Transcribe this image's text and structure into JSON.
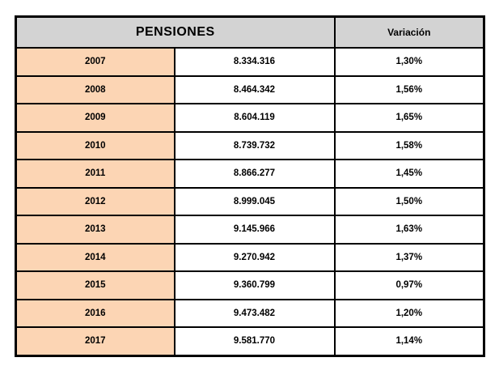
{
  "chart_data": {
    "type": "table",
    "title": "PENSIONES",
    "header": {
      "merged_title": "PENSIONES",
      "variation_label": "Variación"
    },
    "rows": [
      {
        "year": "2007",
        "value": "8.334.316",
        "variation": "1,30%"
      },
      {
        "year": "2008",
        "value": "8.464.342",
        "variation": "1,56%"
      },
      {
        "year": "2009",
        "value": "8.604.119",
        "variation": "1,65%"
      },
      {
        "year": "2010",
        "value": "8.739.732",
        "variation": "1,58%"
      },
      {
        "year": "2011",
        "value": "8.866.277",
        "variation": "1,45%"
      },
      {
        "year": "2012",
        "value": "8.999.045",
        "variation": "1,50%"
      },
      {
        "year": "2013",
        "value": "9.145.966",
        "variation": "1,63%"
      },
      {
        "year": "2014",
        "value": "9.270.942",
        "variation": "1,37%"
      },
      {
        "year": "2015",
        "value": "9.360.799",
        "variation": "0,97%"
      },
      {
        "year": "2016",
        "value": "9.473.482",
        "variation": "1,20%"
      },
      {
        "year": "2017",
        "value": "9.581.770",
        "variation": "1,14%"
      }
    ],
    "layout_hints": {
      "merged_title_spans_columns": 2,
      "grid": true
    },
    "colors": {
      "header_bg": "#d3d3d3",
      "year_column_bg": "#fcd5b4",
      "border": "#000000",
      "text": "#000000",
      "page_bg": "#ffffff"
    }
  }
}
